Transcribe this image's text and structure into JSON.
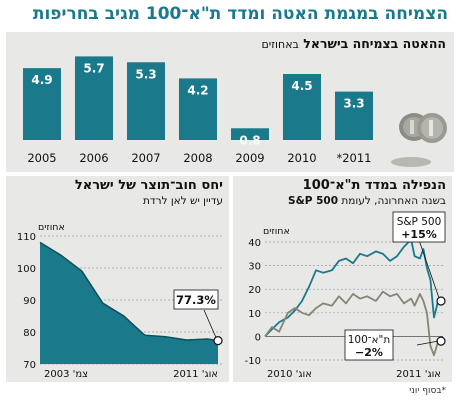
{
  "headline": "הצמיחה במגמת האטה ומדד ת\"א־100 מגיב בחריפות",
  "footnote": "*בסוף יוני",
  "colors": {
    "accent": "#1a7a8c",
    "gray_line": "#858576",
    "panel_bg": "#e8e8e6"
  },
  "top": {
    "title": "ההאטה בצמיחה בישראל",
    "unit": "באחוזים",
    "icon": "coins-icon"
  },
  "bottom_left": {
    "title": "יחס חוב־תוצר של ישראל",
    "subtitle": "עדיין יש לאן לרדת",
    "unit_label": "אחוזים",
    "callout": "77.3%"
  },
  "bottom_right": {
    "title": "הנפילה במדד ת\"א־100",
    "subtitle_plain": "בשנה האחרונה, לעומת",
    "subtitle_bold": "S&P 500",
    "unit_label": "אחוזים",
    "callout_sp_name": "S&P 500",
    "callout_sp_value": "+15%",
    "callout_ta_name": "ת\"א־100",
    "callout_ta_value": "−2%"
  },
  "chart_data": [
    {
      "type": "bar",
      "categories": [
        "2005",
        "2006",
        "2007",
        "2008",
        "2009",
        "2010",
        "*2011"
      ],
      "values": [
        4.9,
        5.7,
        5.3,
        4.2,
        0.8,
        4.5,
        3.3
      ],
      "labels": [
        "4.9",
        "5.7",
        "5.3",
        "4.2",
        "0.8",
        "4.5",
        "3.3"
      ],
      "title": "ההאטה בצמיחה בישראל",
      "ylabel": "באחוזים",
      "ylim": [
        0,
        6
      ]
    },
    {
      "type": "area",
      "x": [
        2003.0,
        2004.0,
        2005.0,
        2006.0,
        2007.0,
        2008.0,
        2009.0,
        2010.0,
        2011.0,
        2011.5
      ],
      "values": [
        108,
        104,
        99,
        89,
        85,
        79,
        78.5,
        77.5,
        77.8,
        77.3
      ],
      "x_tick_labels": [
        "צמ' 2003",
        "אוג' 2011"
      ],
      "ylabel": "אחוזים",
      "ylim": [
        70,
        110
      ],
      "yticks": [
        70,
        80,
        90,
        100,
        110
      ],
      "grid": true,
      "title": "יחס חוב־תוצר של ישראל",
      "subtitle": "עדיין יש לאן לרדת"
    },
    {
      "type": "line",
      "x": [
        0,
        0.04,
        0.08,
        0.13,
        0.17,
        0.21,
        0.25,
        0.29,
        0.33,
        0.38,
        0.42,
        0.46,
        0.5,
        0.54,
        0.58,
        0.63,
        0.67,
        0.71,
        0.75,
        0.79,
        0.83,
        0.85,
        0.88,
        0.9,
        0.92,
        0.94,
        0.96,
        0.98,
        1.0
      ],
      "x_tick_labels": [
        "אוג' 2010",
        "אוג' 2011"
      ],
      "series": [
        {
          "name": "S&P 500",
          "values": [
            0,
            3,
            6,
            8,
            11,
            15,
            21,
            28,
            27,
            28,
            32,
            33,
            31,
            35,
            34,
            36,
            35,
            32,
            34,
            38,
            41,
            34,
            33,
            37,
            29,
            24,
            8,
            14,
            15
          ]
        },
        {
          "name": "ת\"א־100",
          "values": [
            0,
            4,
            2,
            10,
            12,
            10,
            9,
            12,
            14,
            13,
            17,
            14,
            18,
            16,
            17,
            15,
            19,
            17,
            18,
            14,
            16,
            13,
            18,
            15,
            10,
            -4,
            -8,
            -3,
            -2
          ]
        }
      ],
      "ylabel": "אחוזים",
      "ylim": [
        -10,
        40
      ],
      "yticks": [
        -10,
        0,
        10,
        20,
        30,
        40
      ],
      "grid": true,
      "title": "הנפילה במדד ת\"א־100",
      "subtitle": "בשנה האחרונה, לעומת S&P 500"
    }
  ]
}
